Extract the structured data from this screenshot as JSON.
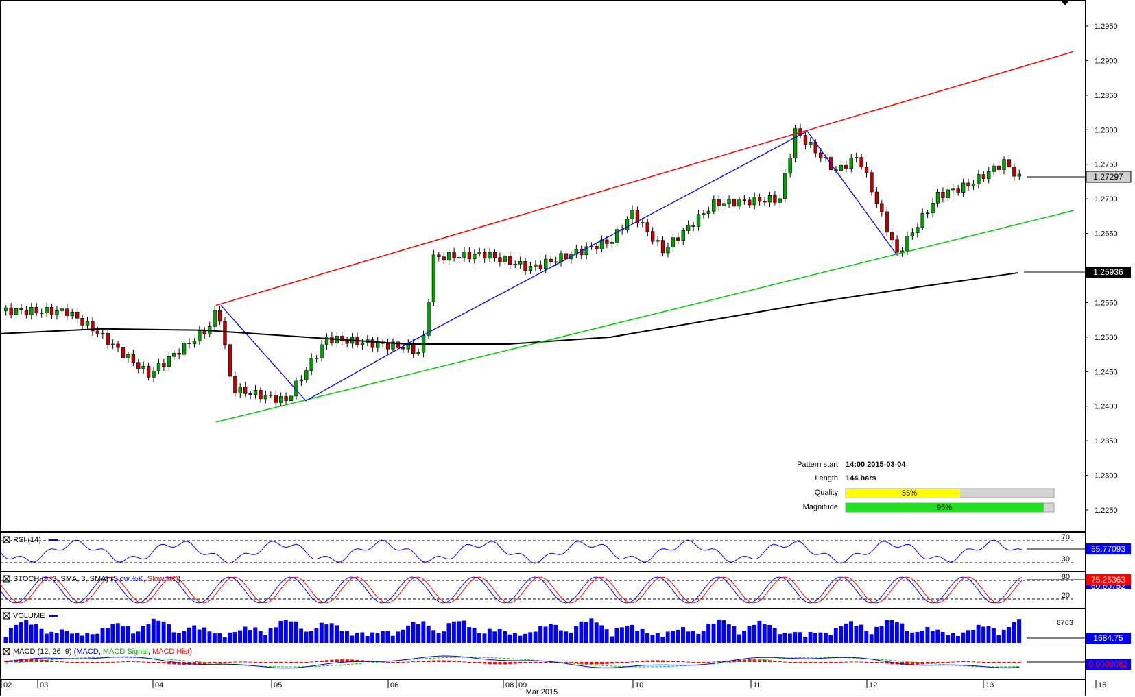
{
  "chart_data": {
    "type": "candlestick",
    "main": {
      "y_ticks": [
        "1.2950",
        "1.2900",
        "1.2850",
        "1.2800",
        "1.2750",
        "1.2700",
        "1.2650",
        "1.2550",
        "1.2500",
        "1.2450",
        "1.2400",
        "1.2350",
        "1.2300",
        "1.2250"
      ],
      "ylim": [
        1.22,
        1.297
      ],
      "current_price": "1.27297",
      "ma_value": "1.25936",
      "colors": {
        "up": "#00a000",
        "down": "#c00000",
        "upper_line": "#ff0000",
        "lower_line": "#00cc00",
        "zigzag": "#0000ff",
        "ma": "#000000"
      },
      "pattern_info": {
        "start_label": "Pattern start",
        "start_value": "14:00 2015-03-04",
        "length_label": "Length",
        "length_value": "144 bars",
        "quality_label": "Quality",
        "quality_value": "55%",
        "quality_fraction": 0.55,
        "magnitude_label": "Magnitude",
        "magnitude_value": "95%",
        "magnitude_fraction": 0.95
      }
    },
    "pattern_lines": {
      "upper": [
        [
          1.2546,
          0.0
        ],
        [
          1.2913,
          1.0
        ]
      ],
      "lower": [
        [
          1.2377,
          0.0
        ],
        [
          1.2683,
          1.0
        ]
      ]
    },
    "zigzag": [
      1.2546,
      1.2408,
      1.2498,
      1.2798,
      1.262
    ],
    "ma_path": [
      1.2505,
      1.2512,
      1.251,
      1.25,
      1.249,
      1.249,
      1.25,
      1.2525,
      1.255,
      1.2572,
      1.2593
    ],
    "x_axis": {
      "day_labels": [
        "02",
        "03",
        "04",
        "05",
        "06",
        "08",
        "09",
        "10",
        "11",
        "12",
        "13",
        "15"
      ],
      "month_label": "Mar 2015"
    },
    "indicators": {
      "rsi": {
        "label": "RSI (14)",
        "value": "55.77093",
        "levels": [
          "70",
          "30"
        ]
      },
      "stoch": {
        "label_prefix": "STOCH (5, 3, SMA, 3, SMA) (",
        "k_label": "Slow %K",
        "sep": ", ",
        "d_label": "Slow %D",
        "suffix": ")",
        "value": "75.25363",
        "value2": "60.60752",
        "levels": [
          "80",
          "20"
        ]
      },
      "volume": {
        "label": "VOLUME",
        "value": "1684.75",
        "scale": "8763"
      },
      "macd": {
        "label_prefix": "MACD (12, 26, 9) (",
        "l1": "MACD",
        "l2": "MACD Signal",
        "l3": "MACD Hist",
        "suffix": ")",
        "value": "0.0003082"
      }
    }
  }
}
